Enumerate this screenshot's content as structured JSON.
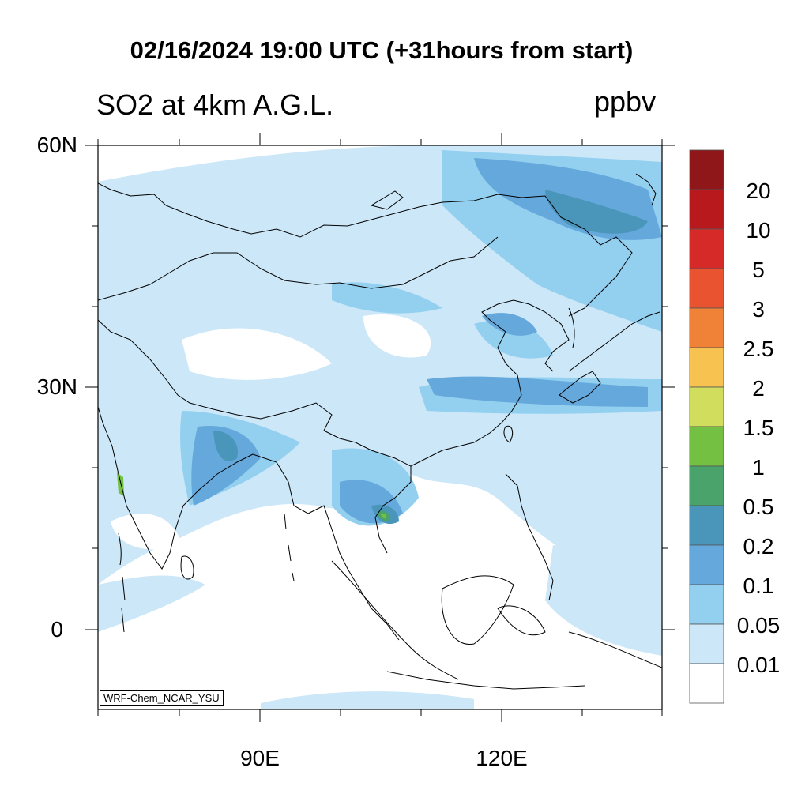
{
  "header": {
    "title": "02/16/2024 19:00 UTC (+31hours from start)",
    "left_label": "SO2 at 4km A.G.L.",
    "units": "ppbv"
  },
  "axes": {
    "lat_labels": [
      "60N",
      "30N",
      "0"
    ],
    "lon_labels": [
      "90E",
      "120E"
    ]
  },
  "colorbar": {
    "labels": [
      "20",
      "10",
      "5",
      "3",
      "2.5",
      "2",
      "1.5",
      "1",
      "0.5",
      "0.2",
      "0.1",
      "0.05",
      "0.01"
    ],
    "colors": [
      "#8f1619",
      "#b8191d",
      "#d62a28",
      "#e95330",
      "#f08237",
      "#f7c24f",
      "#d1dd5c",
      "#74c043",
      "#49a36b",
      "#4a96bb",
      "#65a8dc",
      "#93d0f0",
      "#cbe7f8",
      "#ffffff"
    ]
  },
  "footer": {
    "credit": "WRF-Chem_NCAR_YSU"
  }
}
